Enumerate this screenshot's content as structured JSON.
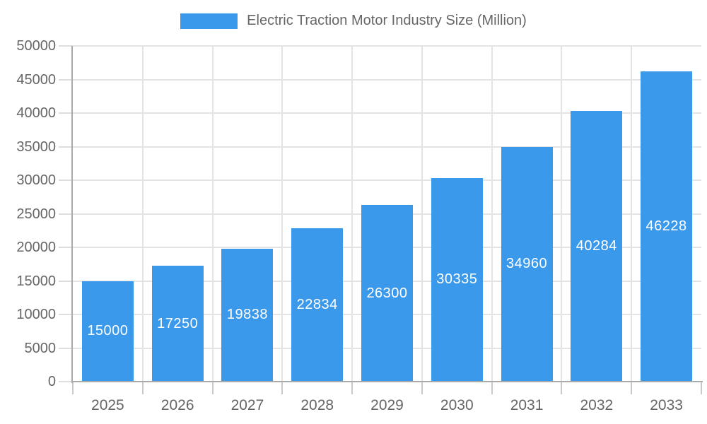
{
  "chart_data": {
    "type": "bar",
    "title": "Electric Traction Motor Industry Size (Million)",
    "categories": [
      "2025",
      "2026",
      "2027",
      "2028",
      "2029",
      "2030",
      "2031",
      "2032",
      "2033"
    ],
    "values": [
      15000,
      17250,
      19838,
      22834,
      26300,
      30335,
      34960,
      40284,
      46228
    ],
    "value_labels_visible": true,
    "xlabel": "",
    "ylabel": "",
    "ylim": [
      0,
      50000
    ],
    "yticks": [
      0,
      5000,
      10000,
      15000,
      20000,
      25000,
      30000,
      35000,
      40000,
      45000,
      50000
    ],
    "grid": true,
    "legend_position": "top",
    "colors": {
      "bar": "#3B99EC",
      "axis_text": "#666666",
      "value_label_text": "#FFFFFF",
      "axis_line": "#AAAAAA",
      "grid_line": "#E4E4E4",
      "background": "#FFFFFF"
    }
  }
}
